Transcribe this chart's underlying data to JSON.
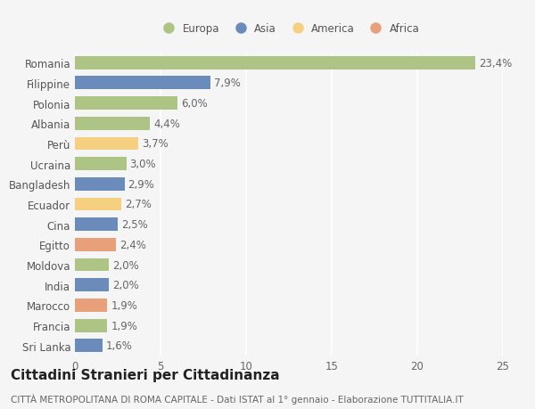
{
  "categories": [
    "Romania",
    "Filippine",
    "Polonia",
    "Albania",
    "Perù",
    "Ucraina",
    "Bangladesh",
    "Ecuador",
    "Cina",
    "Egitto",
    "Moldova",
    "India",
    "Marocco",
    "Francia",
    "Sri Lanka"
  ],
  "values": [
    23.4,
    7.9,
    6.0,
    4.4,
    3.7,
    3.0,
    2.9,
    2.7,
    2.5,
    2.4,
    2.0,
    2.0,
    1.9,
    1.9,
    1.6
  ],
  "labels": [
    "23,4%",
    "7,9%",
    "6,0%",
    "4,4%",
    "3,7%",
    "3,0%",
    "2,9%",
    "2,7%",
    "2,5%",
    "2,4%",
    "2,0%",
    "2,0%",
    "1,9%",
    "1,9%",
    "1,6%"
  ],
  "continent": [
    "Europa",
    "Asia",
    "Europa",
    "Europa",
    "America",
    "Europa",
    "Asia",
    "America",
    "Asia",
    "Africa",
    "Europa",
    "Asia",
    "Africa",
    "Europa",
    "Asia"
  ],
  "colors": {
    "Europa": "#aec484",
    "Asia": "#6b8cba",
    "America": "#f5d080",
    "Africa": "#e8a07a"
  },
  "legend_order": [
    "Europa",
    "Asia",
    "America",
    "Africa"
  ],
  "xlim": [
    0,
    25
  ],
  "xticks": [
    0,
    5,
    10,
    15,
    20,
    25
  ],
  "title": "Cittadini Stranieri per Cittadinanza",
  "subtitle": "CITTÀ METROPOLITANA DI ROMA CAPITALE - Dati ISTAT al 1° gennaio - Elaborazione TUTTITALIA.IT",
  "background_color": "#f5f5f5",
  "bar_height": 0.65,
  "label_fontsize": 8.5,
  "tick_fontsize": 8.5,
  "title_fontsize": 11,
  "subtitle_fontsize": 7.5
}
